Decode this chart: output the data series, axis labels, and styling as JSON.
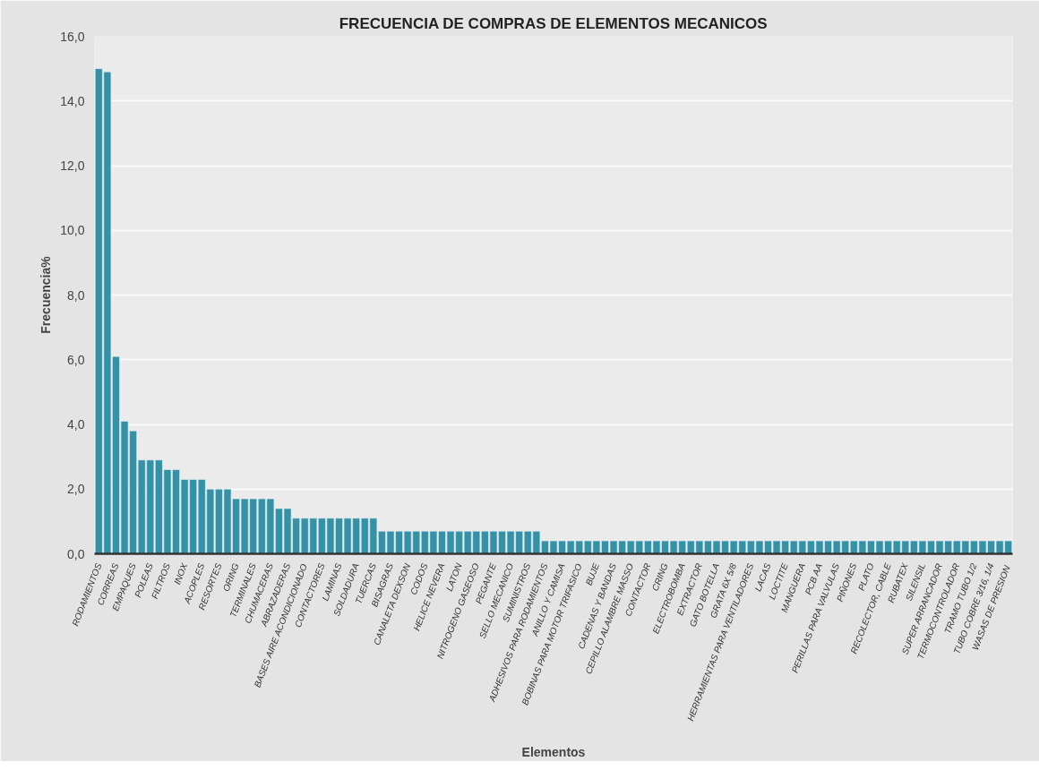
{
  "chart_data": {
    "type": "bar",
    "title": "FRECUENCIA DE COMPRAS DE ELEMENTOS MECANICOS",
    "xlabel": "Elementos",
    "ylabel": "Frecuencia%",
    "categories": [
      "RODAMIENTOS",
      null,
      "CORREAS",
      null,
      "EMPAQUES",
      null,
      "POLEAS",
      null,
      "FILTROS",
      null,
      "INOX",
      null,
      "ACOPLES",
      null,
      "RESORTES",
      null,
      "ORING",
      null,
      "TERMINALES",
      null,
      "CHUMACERAS",
      null,
      "ABRAZADERAS",
      null,
      "BASES AIRE ACONDICIONADO",
      null,
      "CONTACTORES",
      null,
      "LAMINAS",
      null,
      "SOLDADURA",
      null,
      "TUERCAS",
      null,
      "BISAGRAS",
      null,
      "CANALETA DEXSON",
      null,
      "CODOS",
      null,
      "HELICE NEVERA",
      null,
      "LATON",
      null,
      "NITROGENO GASEOSO",
      null,
      "PEGANTE",
      null,
      "SELLO MECANICO",
      null,
      "SUMINISTROS",
      null,
      "ADHESIVOS PARA RODAMIENTOS",
      null,
      "ANILLO Y CAMISA",
      null,
      "BOBINAS PARA MOTOR TRIFASICO",
      null,
      "BUJE",
      null,
      "CADENAS Y BANDAS",
      null,
      "CEPILLO ALAMBRE MASSO",
      null,
      "CONTACTOR",
      null,
      "CRING",
      null,
      "ELECTROBOMBA",
      null,
      "EXTRACTOR",
      null,
      "GATO BOTELLA",
      null,
      "GRATA 6X 5/8",
      null,
      "HERRAMIENTAS PARA VENTILADORES",
      null,
      "LACAS",
      null,
      "LOCTITE",
      null,
      "MANGUERA",
      null,
      "PCB AA",
      null,
      "PERILLAS PARA VALVULAS",
      null,
      "PIÑONES",
      null,
      "PLATO",
      null,
      "RECOLECTOR, CABLE",
      null,
      "RUBATEX",
      null,
      "SILENSIL",
      null,
      "SUPER ARRANCADOR",
      null,
      "TERMOCONTROLADOR",
      null,
      "TRAMO TUBO 1/2",
      null,
      "TUBO COBRE 3/16, 1/4",
      null,
      "WASAS  DE PRESION"
    ],
    "values": [
      15.0,
      14.9,
      6.1,
      4.1,
      3.8,
      2.9,
      2.9,
      2.9,
      2.6,
      2.6,
      2.3,
      2.3,
      2.3,
      2.0,
      2.0,
      2.0,
      1.7,
      1.7,
      1.7,
      1.7,
      1.7,
      1.4,
      1.4,
      1.1,
      1.1,
      1.1,
      1.1,
      1.1,
      1.1,
      1.1,
      1.1,
      1.1,
      1.1,
      0.7,
      0.7,
      0.7,
      0.7,
      0.7,
      0.7,
      0.7,
      0.7,
      0.7,
      0.7,
      0.7,
      0.7,
      0.7,
      0.7,
      0.7,
      0.7,
      0.7,
      0.7,
      0.7,
      0.4,
      0.4,
      0.4,
      0.4,
      0.4,
      0.4,
      0.4,
      0.4,
      0.4,
      0.4,
      0.4,
      0.4,
      0.4,
      0.4,
      0.4,
      0.4,
      0.4,
      0.4,
      0.4,
      0.4,
      0.4,
      0.4,
      0.4,
      0.4,
      0.4,
      0.4,
      0.4,
      0.4,
      0.4,
      0.4,
      0.4,
      0.4,
      0.4,
      0.4,
      0.4,
      0.4,
      0.4,
      0.4,
      0.4,
      0.4,
      0.4,
      0.4,
      0.4,
      0.4,
      0.4,
      0.4,
      0.4,
      0.4,
      0.4,
      0.4,
      0.4,
      0.4,
      0.4,
      0.4,
      0.4
    ],
    "color": "#3592a6",
    "ylim": [
      0,
      16
    ],
    "yticks": [
      {
        "value": 0,
        "label": "0,0"
      },
      {
        "value": 2,
        "label": "2,0"
      },
      {
        "value": 4,
        "label": "4,0"
      },
      {
        "value": 6,
        "label": "6,0"
      },
      {
        "value": 8,
        "label": "8,0"
      },
      {
        "value": 10,
        "label": "10,0"
      },
      {
        "value": 12,
        "label": "12,0"
      },
      {
        "value": 14,
        "label": "14,0"
      },
      {
        "value": 16,
        "label": "16,0"
      }
    ],
    "grid": "y"
  }
}
